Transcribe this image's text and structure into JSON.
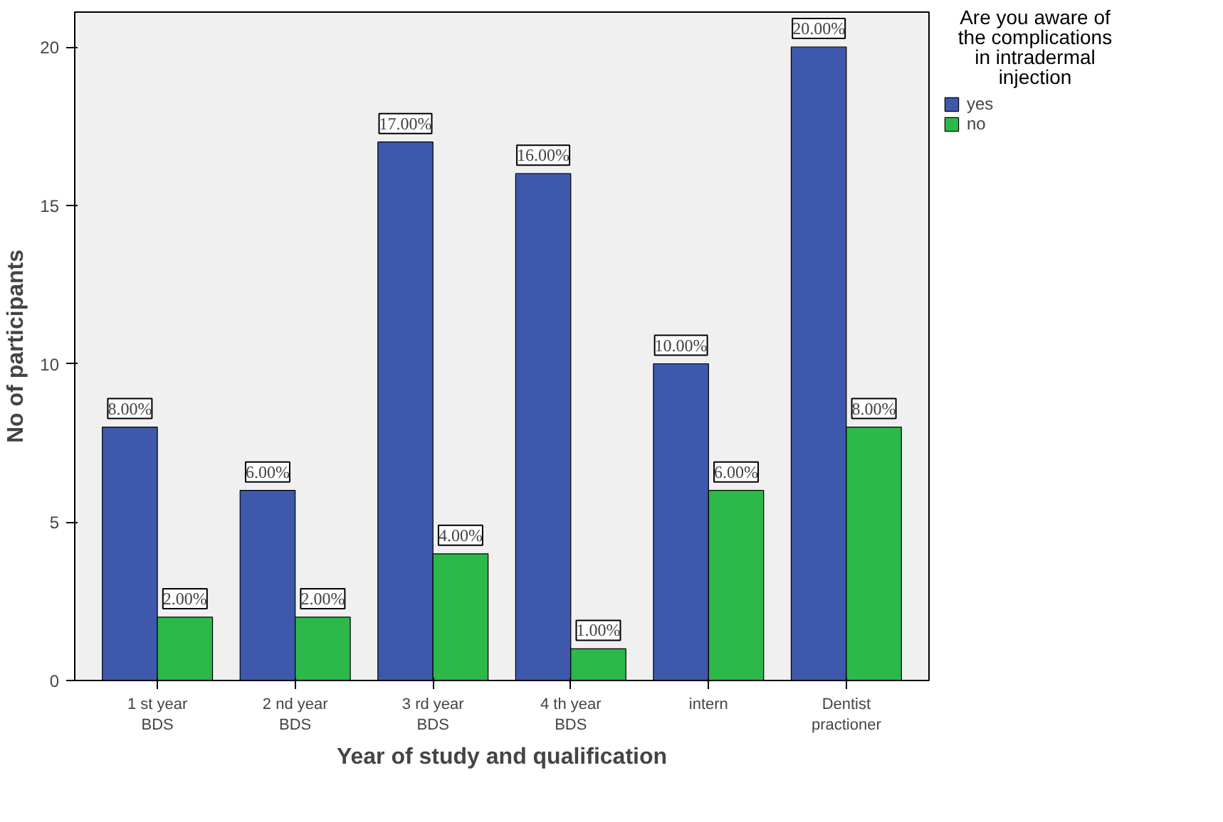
{
  "chart_data": {
    "type": "bar",
    "xlabel": "Year of study and qualification",
    "ylabel": "No of participants",
    "legend_title": "Are you aware of the complications in intradermal injection",
    "categories": [
      "1 st year\nBDS",
      "2 nd year\nBDS",
      "3 rd year\nBDS",
      "4 th year\nBDS",
      "intern",
      "Dentist\npractioner"
    ],
    "series": [
      {
        "name": "yes",
        "color": "#3e58ac",
        "values": [
          8,
          6,
          17,
          16,
          10,
          20
        ],
        "value_labels": [
          "8.00%",
          "6.00%",
          "17.00%",
          "16.00%",
          "10.00%",
          "20.00%"
        ]
      },
      {
        "name": "no",
        "color": "#2db84a",
        "values": [
          2,
          2,
          4,
          1,
          6,
          8
        ],
        "value_labels": [
          "2.00%",
          "2.00%",
          "4.00%",
          "1.00%",
          "6.00%",
          "8.00%"
        ]
      }
    ],
    "ylim": [
      0,
      21.1
    ],
    "yticks": [
      0,
      5,
      10,
      15,
      20
    ],
    "grid": false,
    "legend": "top right"
  }
}
